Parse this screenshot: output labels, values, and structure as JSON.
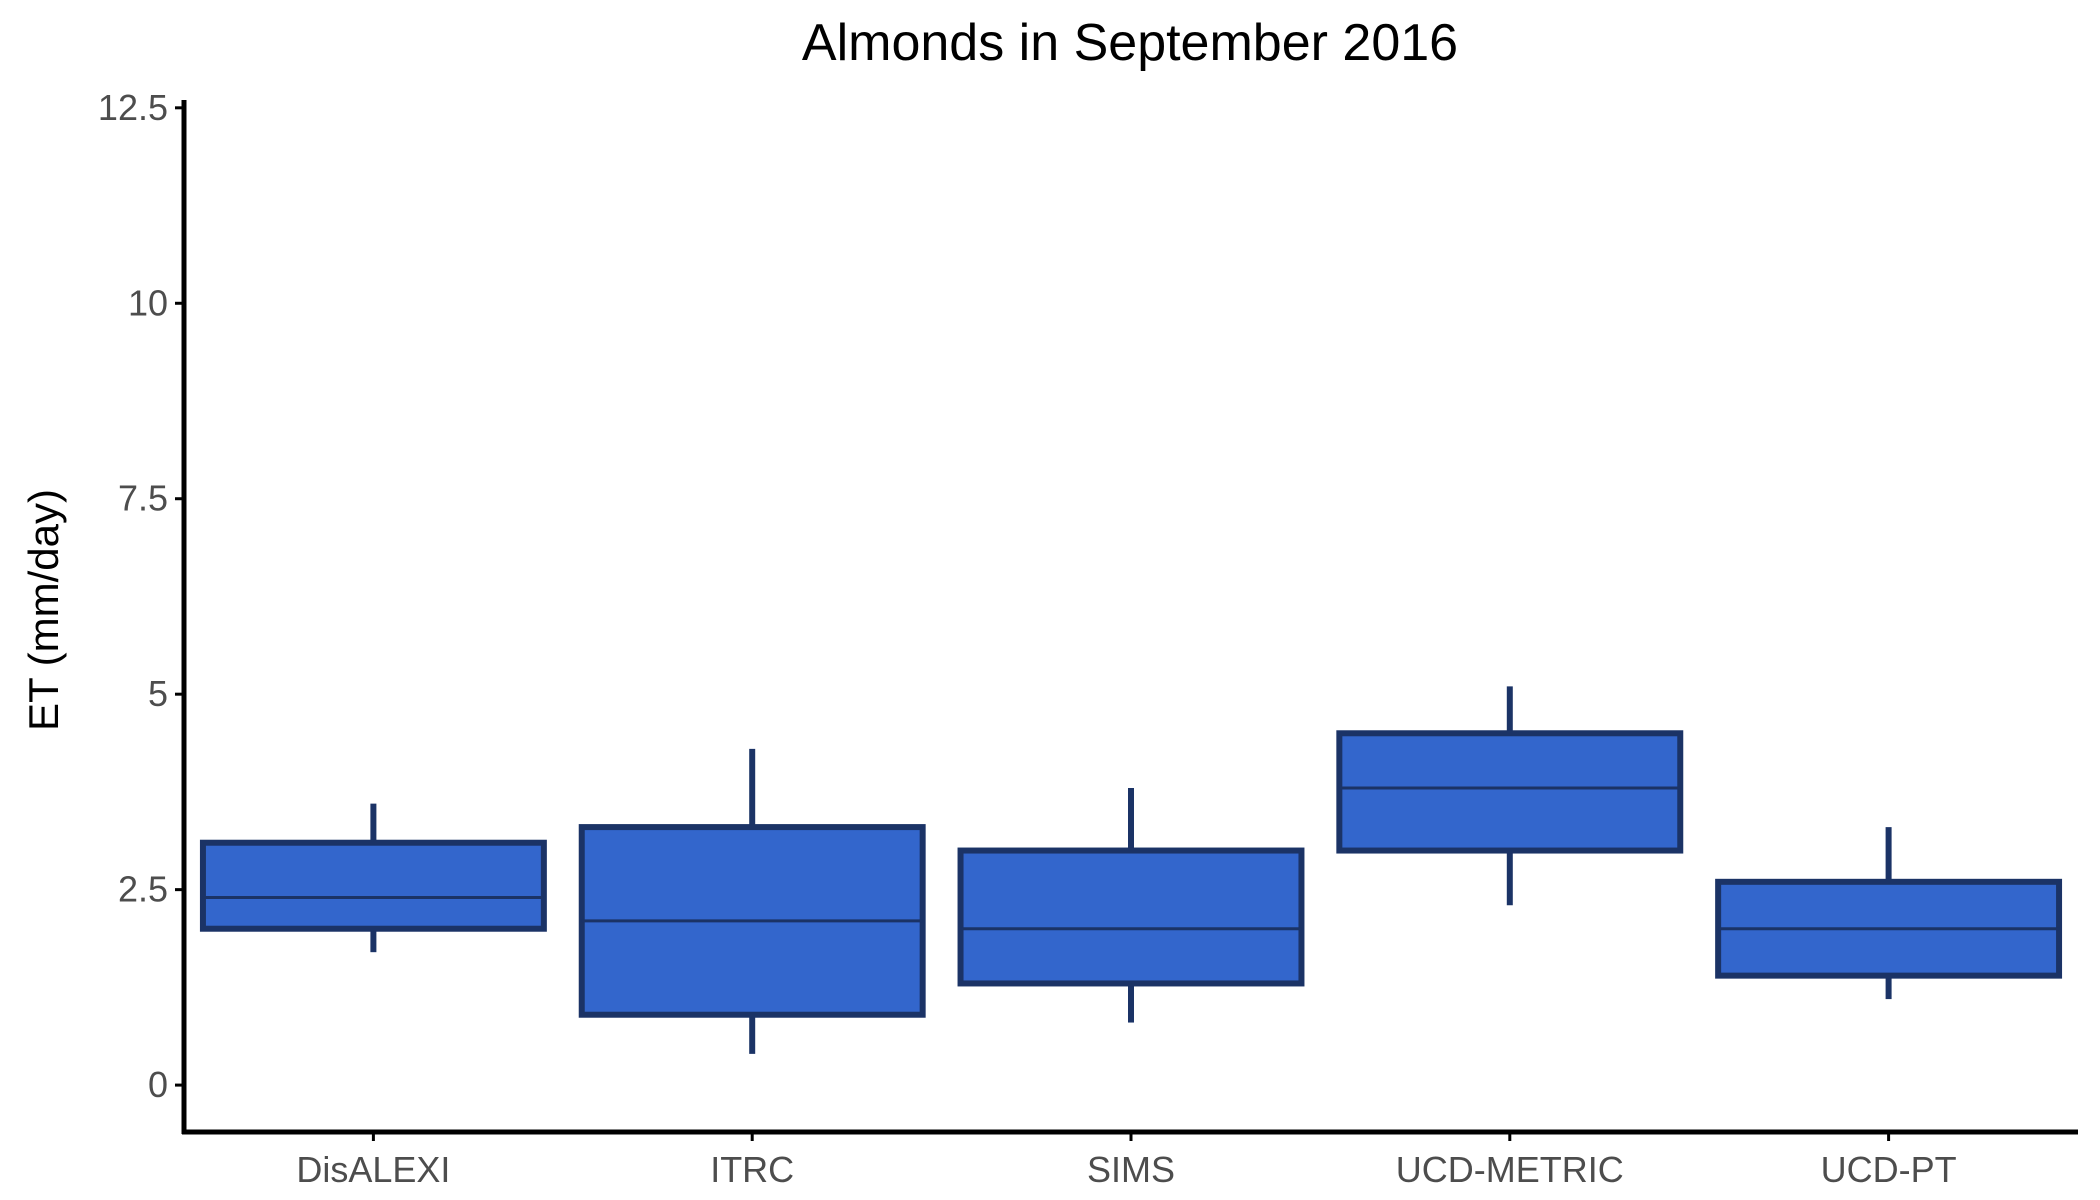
{
  "chart_data": {
    "type": "boxplot",
    "title": "Almonds in September 2016",
    "xlabel": "",
    "ylabel": "ET (mm/day)",
    "ylim": [
      -0.6,
      12.6
    ],
    "y_ticks": [
      0,
      2.5,
      5,
      7.5,
      10,
      12.5
    ],
    "y_tick_labels": [
      "0",
      "2.5",
      "5",
      "7.5",
      "10",
      "12.5"
    ],
    "categories": [
      "DisALEXI",
      "ITRC",
      "SIMS",
      "UCD-METRIC",
      "UCD-PT"
    ],
    "boxes": [
      {
        "category": "DisALEXI",
        "min": 1.7,
        "q1": 2.0,
        "median": 2.4,
        "q3": 3.1,
        "max": 3.6
      },
      {
        "category": "ITRC",
        "min": 0.4,
        "q1": 0.9,
        "median": 2.1,
        "q3": 3.3,
        "max": 4.3
      },
      {
        "category": "SIMS",
        "min": 0.8,
        "q1": 1.3,
        "median": 2.0,
        "q3": 3.0,
        "max": 3.8
      },
      {
        "category": "UCD-METRIC",
        "min": 2.3,
        "q1": 3.0,
        "median": 3.8,
        "q3": 4.5,
        "max": 5.1
      },
      {
        "category": "UCD-PT",
        "min": 1.1,
        "q1": 1.4,
        "median": 2.0,
        "q3": 2.6,
        "max": 3.3
      }
    ],
    "grid": false,
    "legend": "none",
    "colors": {
      "box_fill": "#3366cc",
      "box_outline": "#1b3366",
      "axis": "#000000"
    }
  }
}
